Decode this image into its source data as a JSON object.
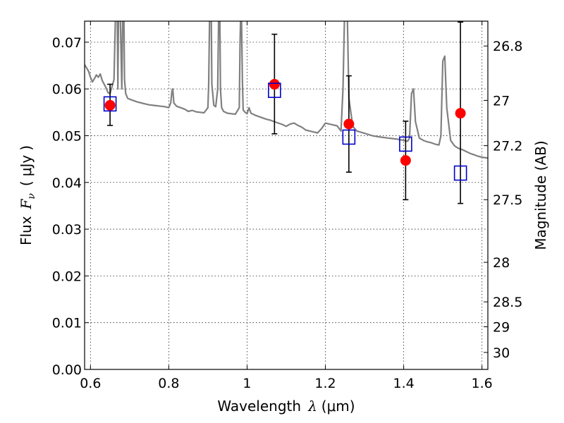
{
  "chart_data": {
    "type": "scatter",
    "xlabel_text": "Wavelength",
    "xlabel_symbol": "λ",
    "xlabel_unit": "μm",
    "ylabel_text": "Flux",
    "ylabel_symbol": "F",
    "ylabel_subscript": "ν",
    "ylabel_unit": "μJy",
    "y2label": "Magnitude (AB)",
    "xlim": [
      0.585,
      1.615
    ],
    "ylim": [
      0.0,
      0.0745
    ],
    "grid": true,
    "x_ticks": [
      0.6,
      0.8,
      1.0,
      1.2,
      1.4,
      1.6
    ],
    "x_tick_labels": [
      "0.6",
      "0.8",
      "1",
      "1.2",
      "1.4",
      "1.6"
    ],
    "y_ticks": [
      0.0,
      0.01,
      0.02,
      0.03,
      0.04,
      0.05,
      0.06,
      0.07
    ],
    "y_tick_labels": [
      "0.00",
      "0.01",
      "0.02",
      "0.03",
      "0.04",
      "0.05",
      "0.06",
      "0.07"
    ],
    "y2_ticks": [
      26.8,
      27.0,
      27.2,
      27.5,
      28.0,
      28.5,
      29.0,
      30.0
    ],
    "y2_tick_labels": [
      "26.8",
      "27",
      "27.2",
      "27.5",
      "28",
      "28.5",
      "29",
      "30"
    ],
    "series": [
      {
        "kind": "line",
        "color": "#808080",
        "x": [
          0.585,
          0.595,
          0.6,
          0.605,
          0.61,
          0.615,
          0.62,
          0.625,
          0.63,
          0.635,
          0.64,
          0.645,
          0.65,
          0.655,
          0.66,
          0.665,
          0.668,
          0.67,
          0.672,
          0.675,
          0.68,
          0.683,
          0.685,
          0.687,
          0.69,
          0.695,
          0.7,
          0.71,
          0.72,
          0.73,
          0.74,
          0.75,
          0.76,
          0.77,
          0.78,
          0.79,
          0.8,
          0.805,
          0.808,
          0.81,
          0.813,
          0.82,
          0.83,
          0.84,
          0.85,
          0.86,
          0.87,
          0.88,
          0.89,
          0.9,
          0.902,
          0.905,
          0.908,
          0.91,
          0.915,
          0.92,
          0.925,
          0.928,
          0.93,
          0.932,
          0.935,
          0.94,
          0.95,
          0.96,
          0.97,
          0.98,
          0.982,
          0.985,
          0.988,
          0.99,
          0.995,
          1.0,
          1.005,
          1.01,
          1.02,
          1.03,
          1.04,
          1.05,
          1.06,
          1.07,
          1.08,
          1.09,
          1.1,
          1.11,
          1.12,
          1.13,
          1.14,
          1.15,
          1.16,
          1.17,
          1.18,
          1.19,
          1.2,
          1.21,
          1.22,
          1.23,
          1.24,
          1.245,
          1.25,
          1.255,
          1.26,
          1.27,
          1.28,
          1.3,
          1.32,
          1.34,
          1.36,
          1.38,
          1.4,
          1.41,
          1.415,
          1.42,
          1.425,
          1.43,
          1.44,
          1.45,
          1.46,
          1.47,
          1.48,
          1.49,
          1.495,
          1.5,
          1.505,
          1.51,
          1.52,
          1.53,
          1.54,
          1.55,
          1.56,
          1.57,
          1.58,
          1.59,
          1.6,
          1.615
        ],
        "y": [
          0.0652,
          0.0638,
          0.0625,
          0.0615,
          0.0622,
          0.063,
          0.0625,
          0.0632,
          0.0618,
          0.061,
          0.0602,
          0.0592,
          0.059,
          0.0605,
          0.062,
          0.08,
          0.08,
          0.06,
          0.08,
          0.08,
          0.06,
          0.08,
          0.08,
          0.062,
          0.059,
          0.058,
          0.0578,
          0.0575,
          0.0572,
          0.057,
          0.0568,
          0.0566,
          0.0565,
          0.0564,
          0.0563,
          0.0562,
          0.056,
          0.057,
          0.0595,
          0.06,
          0.057,
          0.0563,
          0.056,
          0.0557,
          0.0552,
          0.0554,
          0.0551,
          0.055,
          0.0549,
          0.056,
          0.061,
          0.08,
          0.08,
          0.061,
          0.0565,
          0.0562,
          0.06,
          0.08,
          0.08,
          0.06,
          0.056,
          0.0552,
          0.0548,
          0.0547,
          0.0546,
          0.056,
          0.07,
          0.08,
          0.062,
          0.0555,
          0.055,
          0.0547,
          0.056,
          0.0548,
          0.0544,
          0.0541,
          0.0538,
          0.0535,
          0.0533,
          0.053,
          0.0527,
          0.0524,
          0.052,
          0.0525,
          0.0527,
          0.0522,
          0.0518,
          0.0512,
          0.051,
          0.0508,
          0.0506,
          0.0515,
          0.0527,
          0.0525,
          0.0523,
          0.0521,
          0.051,
          0.06,
          0.08,
          0.08,
          0.058,
          0.052,
          0.051,
          0.0505,
          0.05,
          0.0497,
          0.0495,
          0.0493,
          0.049,
          0.0488,
          0.0495,
          0.059,
          0.06,
          0.053,
          0.0495,
          0.049,
          0.0487,
          0.0485,
          0.0482,
          0.048,
          0.05,
          0.066,
          0.067,
          0.056,
          0.049,
          0.0478,
          0.0473,
          0.047,
          0.0466,
          0.0462,
          0.0459,
          0.0456,
          0.0454,
          0.0452
        ]
      },
      {
        "kind": "errorbar-squares",
        "color": "#0000cc",
        "x": [
          0.65,
          1.07,
          1.26,
          1.405,
          1.545
        ],
        "y": [
          0.0568,
          0.0597,
          0.0497,
          0.0482,
          0.042
        ],
        "y_lower": [
          0.0522,
          0.0504,
          0.0422,
          0.0363,
          0.0355
        ],
        "y_upper": [
          0.061,
          0.0717,
          0.0628,
          0.0531,
          0.0743
        ]
      },
      {
        "kind": "points",
        "color": "#ff0000",
        "x": [
          0.65,
          1.07,
          1.26,
          1.405,
          1.545
        ],
        "y": [
          0.0565,
          0.061,
          0.0525,
          0.0447,
          0.0548
        ]
      }
    ]
  }
}
